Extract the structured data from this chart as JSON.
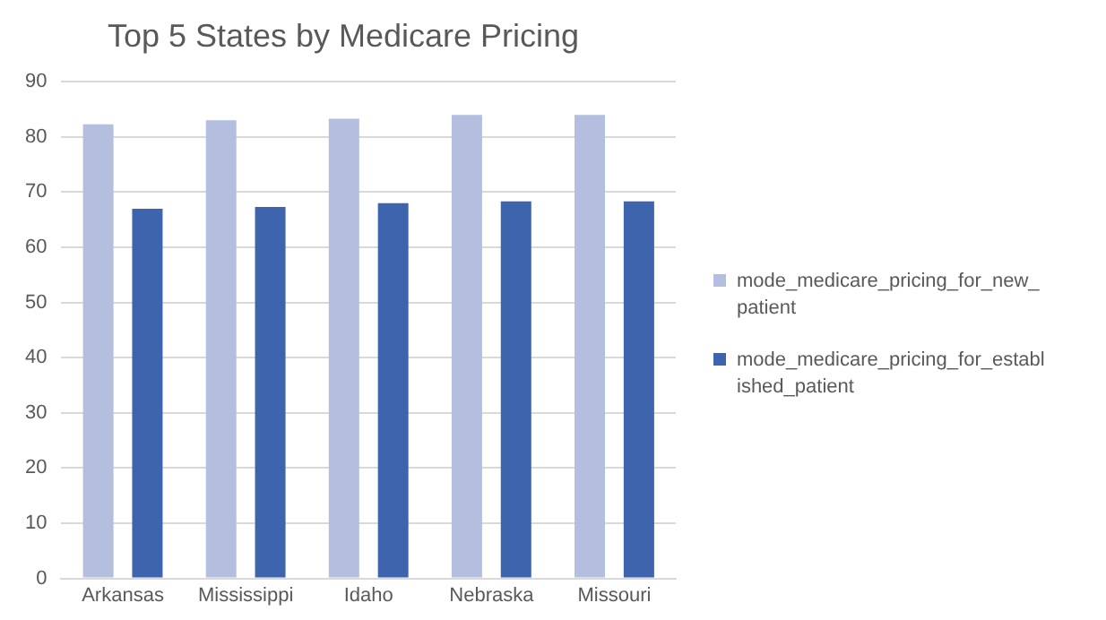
{
  "chart_data": {
    "type": "bar",
    "title": "Top 5 States by Medicare Pricing",
    "categories": [
      "Arkansas",
      "Mississippi",
      "Idaho",
      "Nebraska",
      "Missouri"
    ],
    "series": [
      {
        "name": "mode_medicare_pricing_for_new_patient",
        "color": "#b4bfe0",
        "values": [
          82.3,
          83.0,
          83.3,
          84.0,
          84.0
        ]
      },
      {
        "name": "mode_medicare_pricing_for_established_patient",
        "color": "#3d64ad",
        "values": [
          67.0,
          67.3,
          68.0,
          68.3,
          68.3
        ]
      }
    ],
    "ylim": [
      0,
      90
    ],
    "yticks": [
      0,
      10,
      20,
      30,
      40,
      50,
      60,
      70,
      80,
      90
    ],
    "grid": "y",
    "legend": "right"
  }
}
